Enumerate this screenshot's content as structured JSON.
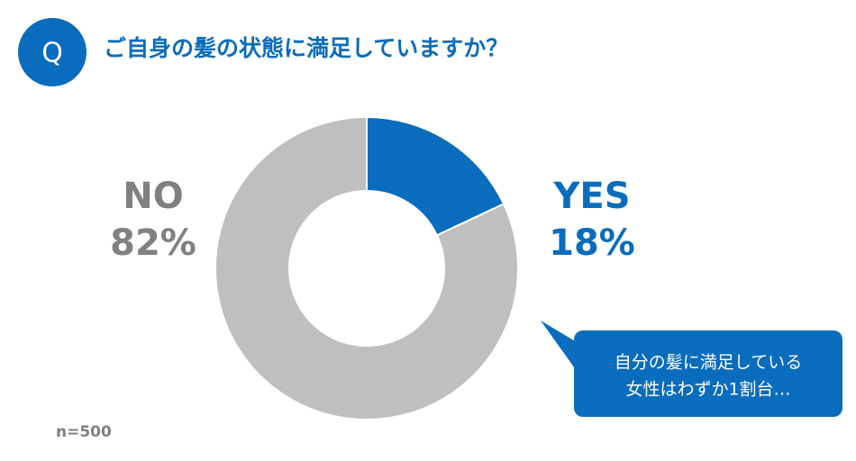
{
  "badge": "Q",
  "chart_data": {
    "type": "donut",
    "title": "ご自身の髪の状態に満足していますか？",
    "categories": [
      "YES",
      "NO"
    ],
    "values": [
      18,
      82
    ],
    "value_labels": [
      "18%",
      "82%"
    ],
    "colors": [
      "#0a6cbc",
      "#bfbfbf"
    ],
    "annotation": [
      "自分の髪に満足している",
      "女性はわずか1割台…"
    ],
    "note": "n=500"
  }
}
